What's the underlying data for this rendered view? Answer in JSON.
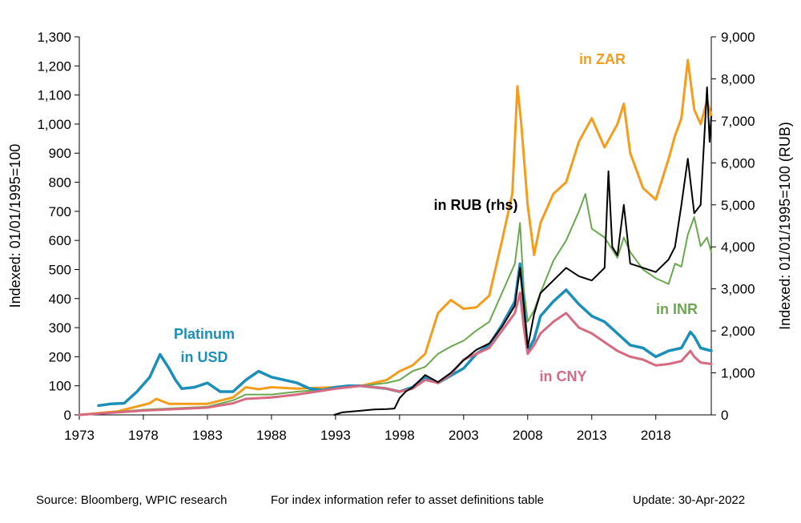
{
  "chart_data": {
    "type": "line",
    "title": "",
    "xlabel": "",
    "ylabel": "Indexed: 01/01/1995=100",
    "y2label": "Indexed: 01/01/1995=100  (RUB)",
    "xlim": [
      1973,
      2022.33
    ],
    "ylim": [
      0,
      1300
    ],
    "y2lim": [
      0,
      9000
    ],
    "x_ticks": [
      "1973",
      "1978",
      "1983",
      "1988",
      "1993",
      "1998",
      "2003",
      "2008",
      "2013",
      "2018"
    ],
    "y_ticks": [
      "0",
      "100",
      "200",
      "300",
      "400",
      "500",
      "600",
      "700",
      "800",
      "900",
      "1,000",
      "1,100",
      "1,200",
      "1,300"
    ],
    "y2_ticks": [
      "0",
      "1,000",
      "2,000",
      "3,000",
      "4,000",
      "5,000",
      "6,000",
      "7,000",
      "8,000",
      "9,000"
    ],
    "grid": false,
    "legend": "inline labels",
    "colors": {
      "usd": "#1b8fb8",
      "zar": "#f59c1b",
      "inr": "#6aa84f",
      "cny": "#d66a80",
      "rub": "#000000"
    },
    "series": [
      {
        "name": "in ZAR",
        "color": "#f59c1b",
        "axis": "left",
        "points": [
          [
            1973,
            0
          ],
          [
            1976,
            12
          ],
          [
            1978.5,
            40
          ],
          [
            1979,
            55
          ],
          [
            1980,
            38
          ],
          [
            1983,
            38
          ],
          [
            1985,
            60
          ],
          [
            1986,
            95
          ],
          [
            1987,
            88
          ],
          [
            1988,
            95
          ],
          [
            1990,
            90
          ],
          [
            1993,
            95
          ],
          [
            1995,
            100
          ],
          [
            1997,
            120
          ],
          [
            1998,
            150
          ],
          [
            1999,
            170
          ],
          [
            2000,
            210
          ],
          [
            2001,
            350
          ],
          [
            2002,
            395
          ],
          [
            2003,
            365
          ],
          [
            2004,
            370
          ],
          [
            2005,
            410
          ],
          [
            2006,
            600
          ],
          [
            2006.8,
            760
          ],
          [
            2007.2,
            1130
          ],
          [
            2007.5,
            1000
          ],
          [
            2008,
            720
          ],
          [
            2008.5,
            550
          ],
          [
            2009,
            660
          ],
          [
            2010,
            760
          ],
          [
            2011,
            800
          ],
          [
            2012,
            940
          ],
          [
            2013,
            1020
          ],
          [
            2014,
            920
          ],
          [
            2015,
            1000
          ],
          [
            2015.5,
            1070
          ],
          [
            2016,
            900
          ],
          [
            2017,
            780
          ],
          [
            2018,
            740
          ],
          [
            2019,
            880
          ],
          [
            2019.5,
            960
          ],
          [
            2020,
            1020
          ],
          [
            2020.5,
            1220
          ],
          [
            2021,
            1050
          ],
          [
            2021.5,
            1000
          ],
          [
            2022,
            1080
          ],
          [
            2022.33,
            1030
          ]
        ]
      },
      {
        "name": "in INR",
        "color": "#6aa84f",
        "axis": "left",
        "points": [
          [
            1973,
            0
          ],
          [
            1978,
            18
          ],
          [
            1983,
            28
          ],
          [
            1985,
            50
          ],
          [
            1986,
            70
          ],
          [
            1988,
            70
          ],
          [
            1990,
            80
          ],
          [
            1993,
            90
          ],
          [
            1995,
            100
          ],
          [
            1997,
            110
          ],
          [
            1998,
            120
          ],
          [
            1999,
            150
          ],
          [
            2000,
            165
          ],
          [
            2001,
            210
          ],
          [
            2002,
            235
          ],
          [
            2003,
            255
          ],
          [
            2004,
            290
          ],
          [
            2005,
            320
          ],
          [
            2006,
            420
          ],
          [
            2007,
            520
          ],
          [
            2007.4,
            660
          ],
          [
            2007.7,
            430
          ],
          [
            2008,
            320
          ],
          [
            2008.5,
            360
          ],
          [
            2009,
            420
          ],
          [
            2010,
            530
          ],
          [
            2011,
            600
          ],
          [
            2012,
            700
          ],
          [
            2012.5,
            760
          ],
          [
            2013,
            640
          ],
          [
            2014,
            610
          ],
          [
            2015,
            540
          ],
          [
            2015.5,
            610
          ],
          [
            2016,
            560
          ],
          [
            2017,
            500
          ],
          [
            2018,
            470
          ],
          [
            2019,
            450
          ],
          [
            2019.5,
            520
          ],
          [
            2020,
            510
          ],
          [
            2020.5,
            620
          ],
          [
            2021,
            680
          ],
          [
            2021.5,
            580
          ],
          [
            2022,
            610
          ],
          [
            2022.33,
            560
          ]
        ]
      },
      {
        "name": "Platinum in USD",
        "color": "#1b8fb8",
        "axis": "left",
        "points": [
          [
            1974.5,
            32
          ],
          [
            1975.5,
            38
          ],
          [
            1976.5,
            40
          ],
          [
            1977.5,
            80
          ],
          [
            1978.5,
            130
          ],
          [
            1979.3,
            208
          ],
          [
            1980,
            160
          ],
          [
            1980.5,
            120
          ],
          [
            1981,
            90
          ],
          [
            1982,
            95
          ],
          [
            1983,
            110
          ],
          [
            1984,
            80
          ],
          [
            1985,
            80
          ],
          [
            1986,
            120
          ],
          [
            1987,
            150
          ],
          [
            1988,
            130
          ],
          [
            1989,
            120
          ],
          [
            1990,
            110
          ],
          [
            1991,
            90
          ],
          [
            1992,
            85
          ],
          [
            1993,
            95
          ],
          [
            1994,
            100
          ],
          [
            1995,
            100
          ],
          [
            1996,
            95
          ],
          [
            1997,
            90
          ],
          [
            1998,
            80
          ],
          [
            1999,
            95
          ],
          [
            2000,
            130
          ],
          [
            2001,
            110
          ],
          [
            2002,
            135
          ],
          [
            2003,
            160
          ],
          [
            2004,
            210
          ],
          [
            2005,
            240
          ],
          [
            2006,
            310
          ],
          [
            2007,
            390
          ],
          [
            2007.4,
            520
          ],
          [
            2007.7,
            380
          ],
          [
            2008,
            220
          ],
          [
            2008.5,
            260
          ],
          [
            2009,
            340
          ],
          [
            2010,
            390
          ],
          [
            2011,
            430
          ],
          [
            2012,
            380
          ],
          [
            2013,
            340
          ],
          [
            2014,
            320
          ],
          [
            2015,
            280
          ],
          [
            2016,
            240
          ],
          [
            2017,
            230
          ],
          [
            2018,
            200
          ],
          [
            2019,
            220
          ],
          [
            2020,
            230
          ],
          [
            2020.7,
            285
          ],
          [
            2021,
            270
          ],
          [
            2021.5,
            230
          ],
          [
            2022.33,
            220
          ]
        ]
      },
      {
        "name": "in CNY",
        "color": "#d66a80",
        "axis": "left",
        "points": [
          [
            1973,
            0
          ],
          [
            1978,
            15
          ],
          [
            1983,
            25
          ],
          [
            1985,
            40
          ],
          [
            1986,
            55
          ],
          [
            1988,
            60
          ],
          [
            1990,
            70
          ],
          [
            1993,
            90
          ],
          [
            1995,
            100
          ],
          [
            1996,
            95
          ],
          [
            1997,
            90
          ],
          [
            1998,
            80
          ],
          [
            1999,
            90
          ],
          [
            2000,
            120
          ],
          [
            2001,
            110
          ],
          [
            2002,
            140
          ],
          [
            2003,
            190
          ],
          [
            2004,
            210
          ],
          [
            2005,
            230
          ],
          [
            2006,
            290
          ],
          [
            2007,
            350
          ],
          [
            2007.4,
            420
          ],
          [
            2007.7,
            300
          ],
          [
            2008,
            210
          ],
          [
            2008.5,
            240
          ],
          [
            2009,
            280
          ],
          [
            2010,
            320
          ],
          [
            2011,
            350
          ],
          [
            2012,
            300
          ],
          [
            2013,
            280
          ],
          [
            2014,
            250
          ],
          [
            2015,
            220
          ],
          [
            2016,
            200
          ],
          [
            2017,
            190
          ],
          [
            2018,
            170
          ],
          [
            2019,
            175
          ],
          [
            2020,
            185
          ],
          [
            2020.7,
            220
          ],
          [
            2021,
            200
          ],
          [
            2021.5,
            180
          ],
          [
            2022.33,
            175
          ]
        ]
      },
      {
        "name": "in RUB (rhs)",
        "color": "#000000",
        "axis": "right",
        "points": [
          [
            1992.9,
            0
          ],
          [
            1993.5,
            60
          ],
          [
            1995,
            100
          ],
          [
            1996,
            130
          ],
          [
            1997,
            140
          ],
          [
            1997.6,
            150
          ],
          [
            1998,
            400
          ],
          [
            1998.5,
            560
          ],
          [
            1999,
            650
          ],
          [
            2000,
            950
          ],
          [
            2001,
            780
          ],
          [
            2002,
            1000
          ],
          [
            2003,
            1300
          ],
          [
            2004,
            1550
          ],
          [
            2005,
            1700
          ],
          [
            2006,
            2100
          ],
          [
            2007,
            2600
          ],
          [
            2007.4,
            3500
          ],
          [
            2007.7,
            2600
          ],
          [
            2008,
            1600
          ],
          [
            2008.5,
            2400
          ],
          [
            2009,
            2900
          ],
          [
            2010,
            3200
          ],
          [
            2011,
            3500
          ],
          [
            2012,
            3300
          ],
          [
            2013,
            3200
          ],
          [
            2014,
            3500
          ],
          [
            2014.3,
            5800
          ],
          [
            2014.6,
            4000
          ],
          [
            2015,
            3800
          ],
          [
            2015.5,
            5000
          ],
          [
            2016,
            3600
          ],
          [
            2017,
            3500
          ],
          [
            2018,
            3400
          ],
          [
            2019,
            3700
          ],
          [
            2019.5,
            4000
          ],
          [
            2020,
            5000
          ],
          [
            2020.5,
            6100
          ],
          [
            2021,
            4800
          ],
          [
            2021.5,
            5000
          ],
          [
            2022,
            7800
          ],
          [
            2022.2,
            6500
          ],
          [
            2022.33,
            7100
          ]
        ]
      }
    ],
    "annotations": [
      {
        "text": "Platinum",
        "series": "Platinum in USD"
      },
      {
        "text": "in USD",
        "series": "Platinum in USD"
      },
      {
        "text": "in ZAR",
        "series": "in ZAR"
      },
      {
        "text": "in RUB (rhs)",
        "series": "in RUB (rhs)"
      },
      {
        "text": "in INR",
        "series": "in INR"
      },
      {
        "text": "in CNY",
        "series": "in CNY"
      }
    ]
  },
  "footer": {
    "source": "Source: Bloomberg, WPIC research",
    "note": "For index information refer to asset definitions table",
    "update": "Update: 30-Apr-2022"
  }
}
